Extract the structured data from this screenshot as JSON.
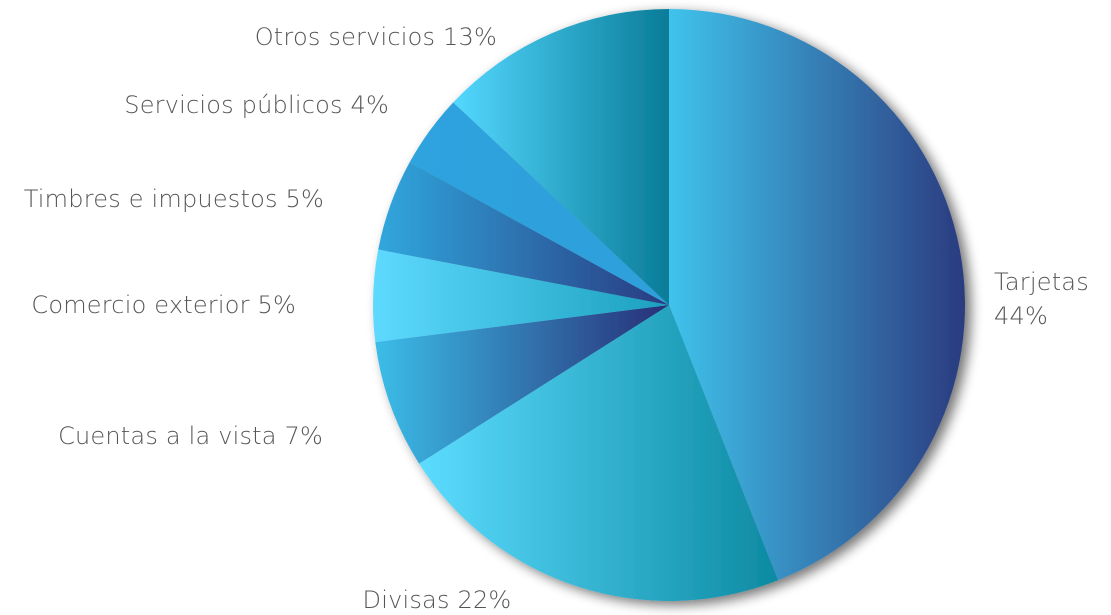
{
  "chart_data": {
    "type": "pie",
    "title": "",
    "slices": [
      {
        "label": "Tarjetas",
        "value": 44,
        "value_text": "44%",
        "stops": [
          "#3fc3ec",
          "#2b3b7f"
        ]
      },
      {
        "label": "Divisas",
        "value": 22,
        "value_text": "22%",
        "stops": [
          "#5cdcff",
          "#0d8aa2"
        ]
      },
      {
        "label": "Cuentas a la vista",
        "value": 7,
        "value_text": "7%",
        "stops": [
          "#3bbde8",
          "#282e77"
        ]
      },
      {
        "label": "Comercio exterior",
        "value": 5,
        "value_text": "5%",
        "stops": [
          "#5ed9ff",
          "#1ba0bd"
        ]
      },
      {
        "label": "Timbres e impuestos",
        "value": 5,
        "value_text": "5%",
        "stops": [
          "#30a7dd",
          "#2a3a80"
        ]
      },
      {
        "label": "Servicios públicos",
        "value": 4,
        "value_text": "4%",
        "stops": [
          "#2da3de",
          "#2d9fdb"
        ]
      },
      {
        "label": "Otros servicios",
        "value": 13,
        "value_text": "13%",
        "stops": [
          "#54d8ff",
          "#097c98"
        ]
      }
    ],
    "start_angle_deg": 0,
    "direction": "clockwise",
    "legend": "none",
    "label_color": "#555555"
  }
}
